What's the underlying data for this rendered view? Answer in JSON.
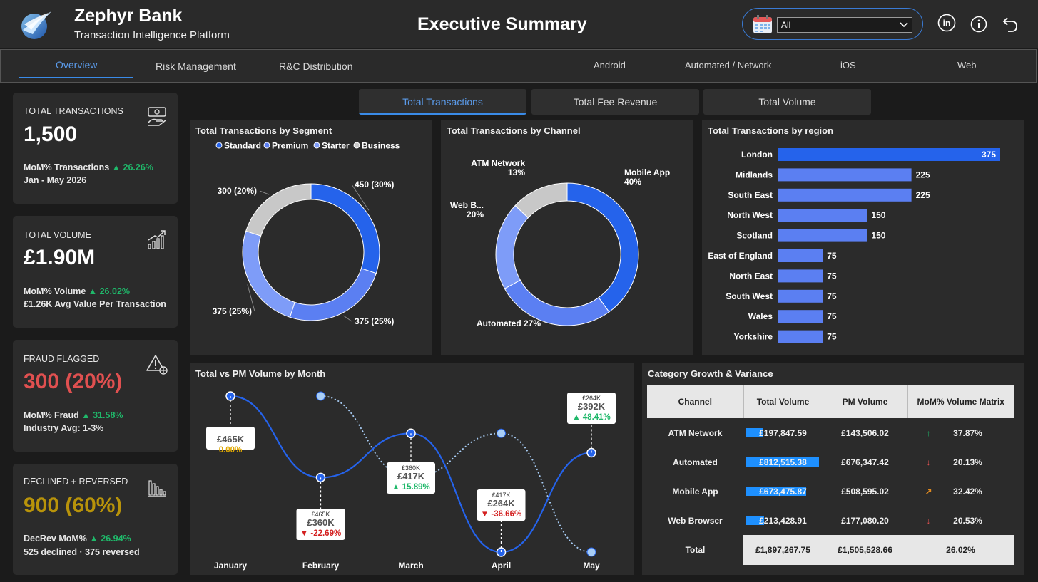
{
  "header": {
    "bank_name": "Zephyr Bank",
    "bank_subtitle": "Transaction Intelligence Platform",
    "page_title": "Executive Summary",
    "filter_value": "All"
  },
  "tabs": [
    {
      "label": "Overview"
    },
    {
      "label": "Risk Management"
    },
    {
      "label": "R&C Distribution"
    },
    {
      "label": "Android"
    },
    {
      "label": "Automated / Network"
    },
    {
      "label": "iOS"
    },
    {
      "label": "Web"
    }
  ],
  "kpis": {
    "transactions": {
      "label": "TOTAL TRANSACTIONS",
      "value": "1,500",
      "mom_label": "MoM% Transactions",
      "mom_value": "▲ 26.26%",
      "sub": "Jan - May 2026"
    },
    "volume": {
      "label": "TOTAL VOLUME",
      "value": "£1.90M",
      "mom_label": "MoM% Volume",
      "mom_value": "▲ 26.02%",
      "sub": "£1.26K Avg Value Per Transaction"
    },
    "fraud": {
      "label": "FRAUD FLAGGED",
      "value": "300 (20%)",
      "mom_label": "MoM% Fraud",
      "mom_value": "▲ 31.58%",
      "sub": "Industry Avg: 1-3%"
    },
    "declined": {
      "label": "DECLINED + REVERSED",
      "value": "900 (60%)",
      "mom_label": "DecRev MoM%",
      "mom_value": "▲ 26.94%",
      "sub": "525 declined · 375 reversed"
    }
  },
  "metric_buttons": {
    "b1": "Total Transactions",
    "b2": "Total Fee Revenue",
    "b3": "Total Volume"
  },
  "colors": {
    "standard": "#2563eb",
    "premium": "#5b7ff2",
    "starter": "#7e9cf8",
    "business": "#c8c8c8",
    "accent": "#3a8be8",
    "green": "#1fb86a",
    "red": "#e05050",
    "gold": "#b8930a"
  },
  "segment_title": "Total Transactions by Segment",
  "channel_title": "Total Transactions by Channel",
  "region_title": "Total Transactions by region",
  "month_title": "Total vs PM Volume by Month",
  "table_title": "Category Growth & Variance",
  "chart_data": [
    {
      "type": "pie",
      "legend": [
        "Standard",
        "Premium",
        "Starter",
        "Business"
      ],
      "values": [
        450,
        375,
        375,
        300
      ],
      "labels": [
        "450 (30%)",
        "375 (25%)",
        "375 (25%)",
        "300 (20%)"
      ]
    },
    {
      "type": "pie",
      "categories": [
        "Mobile App",
        "Automated",
        "Web B...",
        "ATM Network"
      ],
      "values": [
        40,
        27,
        20,
        13
      ],
      "labels": [
        "Mobile App\n40%",
        "Automated 27%",
        "Web B...\n20%",
        "ATM Network\n13%"
      ]
    },
    {
      "type": "bar",
      "categories": [
        "London",
        "Midlands",
        "South East",
        "North West",
        "Scotland",
        "East of England",
        "North East",
        "South West",
        "Wales",
        "Yorkshire"
      ],
      "values": [
        375,
        225,
        225,
        150,
        150,
        75,
        75,
        75,
        75,
        75
      ]
    },
    {
      "type": "line",
      "categories": [
        "January",
        "February",
        "March",
        "April",
        "May"
      ],
      "series": [
        {
          "values": [
            465,
            360,
            417,
            264,
            392
          ]
        },
        {
          "values": [
            null,
            465,
            360,
            417,
            264
          ]
        }
      ],
      "labels": [
        {
          "pm": "",
          "total": "£465K",
          "pct": "0.00%",
          "dir": "flat"
        },
        {
          "pm": "£465K",
          "total": "£360K",
          "pct": "▼ -22.69%",
          "dir": "down"
        },
        {
          "pm": "£360K",
          "total": "£417K",
          "pct": "▲ 15.89%",
          "dir": "up"
        },
        {
          "pm": "£417K",
          "total": "£264K",
          "pct": "▼ -36.66%",
          "dir": "down"
        },
        {
          "pm": "£264K",
          "total": "£392K",
          "pct": "▲ 48.41%",
          "dir": "up"
        }
      ]
    }
  ],
  "table": {
    "headers": [
      "Channel",
      "Total Volume",
      "PM Volume",
      "MoM% Volume Matrix"
    ],
    "rows": [
      {
        "channel": "ATM Network",
        "total": "£197,847.59",
        "total_share": 0.235,
        "pm": "£143,506.02",
        "arrow": "↑",
        "arrow_color": "#1fb86a",
        "mom": "37.87%"
      },
      {
        "channel": "Automated",
        "total": "£812,515.38",
        "total_share": 1.0,
        "pm": "£676,347.42",
        "arrow": "↓",
        "arrow_color": "#e05050",
        "mom": "20.13%"
      },
      {
        "channel": "Mobile App",
        "total": "£673,475.87",
        "total_share": 0.83,
        "pm": "£508,595.02",
        "arrow": "↗",
        "arrow_color": "#e08a20",
        "mom": "32.42%"
      },
      {
        "channel": "Web Browser",
        "total": "£213,428.91",
        "total_share": 0.255,
        "pm": "£177,080.20",
        "arrow": "↓",
        "arrow_color": "#e05050",
        "mom": "20.53%"
      }
    ],
    "total": {
      "label": "Total",
      "total": "£1,897,267.75",
      "pm": "£1,505,528.66",
      "mom": "26.02%"
    }
  }
}
